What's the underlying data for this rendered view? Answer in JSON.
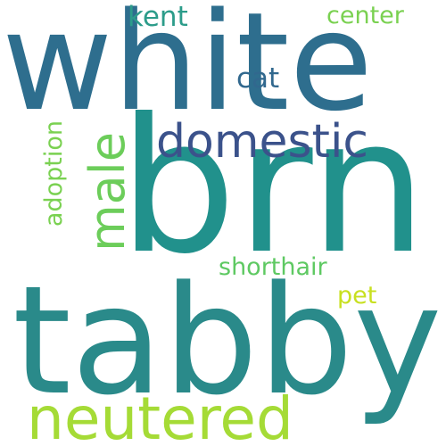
{
  "words": [
    {
      "id": "white",
      "text": "white",
      "color": "#2e6e8e",
      "orientation": "horizontal"
    },
    {
      "id": "brn",
      "text": "brn",
      "color": "#21918c",
      "orientation": "horizontal"
    },
    {
      "id": "tabby",
      "text": "tabby",
      "color": "#2a8a8a",
      "orientation": "horizontal"
    },
    {
      "id": "neutered",
      "text": "neutered",
      "color": "#a5db36",
      "orientation": "horizontal"
    },
    {
      "id": "domestic",
      "text": "domestic",
      "color": "#3b528b",
      "orientation": "horizontal"
    },
    {
      "id": "male",
      "text": "male",
      "color": "#6ccd5a",
      "orientation": "vertical"
    },
    {
      "id": "kent",
      "text": "kent",
      "color": "#2c9c8a",
      "orientation": "horizontal"
    },
    {
      "id": "center",
      "text": "center",
      "color": "#7ad151",
      "orientation": "horizontal"
    },
    {
      "id": "cat",
      "text": "cat",
      "color": "#31688e",
      "orientation": "horizontal"
    },
    {
      "id": "adoption",
      "text": "adoption",
      "color": "#7ad151",
      "orientation": "vertical"
    },
    {
      "id": "shorthair",
      "text": "shorthair",
      "color": "#5ec962",
      "orientation": "horizontal"
    },
    {
      "id": "pet",
      "text": "pet",
      "color": "#c8e020",
      "orientation": "horizontal"
    }
  ]
}
